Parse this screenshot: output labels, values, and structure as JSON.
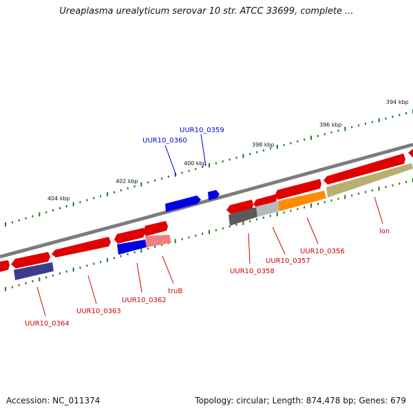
{
  "title": "Ureaplasma urealyticum serovar 10 str. ATCC 33699, complete ...",
  "footer": {
    "accession": "Accession: NC_011374",
    "summary": "Topology: circular; Length: 874,478 bp; Genes: 679"
  },
  "scale_ticks": [
    "394 kbp",
    "396 kbp",
    "398 kbp",
    "400 kbp",
    "402 kbp",
    "404 kbp"
  ],
  "colors": {
    "backbone": "#808080",
    "gene_red": "#e00000",
    "gene_blue": "#0000e0",
    "gene_navy": "#3c3c8c",
    "gene_pink": "#f08080",
    "gene_gray": "#606060",
    "gene_lightgray": "#b8b8b8",
    "gene_orange": "#ff8c00",
    "gene_olive": "#b8b070",
    "tick_green": "#1a7a1a",
    "label_red": "#cc0000",
    "label_blue": "#0000cc"
  },
  "gene_labels": {
    "uur10_0359": "UUR10_0359",
    "uur10_0360": "UUR10_0360",
    "uur10_0364": "UUR10_0364",
    "uur10_0363": "UUR10_0363",
    "uur10_0362": "UUR10_0362",
    "trub": "truB",
    "uur10_0358": "UUR10_0358",
    "uur10_0357": "UUR10_0357",
    "uur10_0356": "UUR10_0356",
    "lon": "lon"
  }
}
